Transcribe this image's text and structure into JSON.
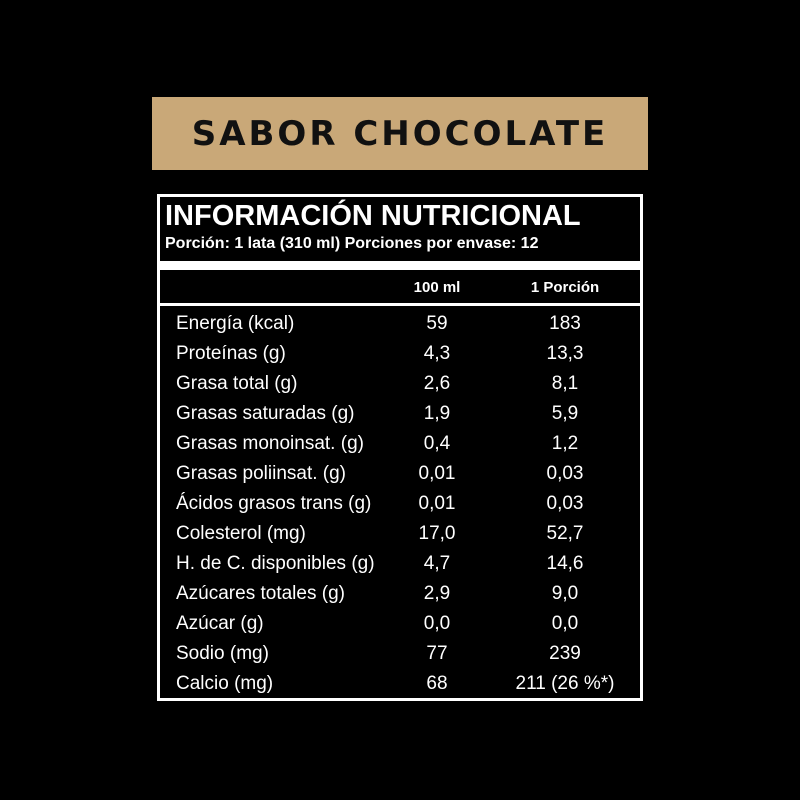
{
  "banner": {
    "title": "SABOR CHOCOLATE",
    "color": "#c9a878"
  },
  "panel": {
    "title": "INFORMACIÓN NUTRICIONAL",
    "serving": "Porción: 1 lata (310 ml)  Porciones por envase: 12",
    "columns": [
      "100 ml",
      "1 Porción"
    ],
    "rows": [
      {
        "label": "Energía (kcal)",
        "per100": "59",
        "portion": "183"
      },
      {
        "label": "Proteínas (g)",
        "per100": "4,3",
        "portion": "13,3"
      },
      {
        "label": "Grasa total (g)",
        "per100": "2,6",
        "portion": "8,1"
      },
      {
        "label": "Grasas saturadas (g)",
        "per100": "1,9",
        "portion": "5,9"
      },
      {
        "label": "Grasas monoinsat. (g)",
        "per100": "0,4",
        "portion": "1,2"
      },
      {
        "label": "Grasas poliinsat. (g)",
        "per100": "0,01",
        "portion": "0,03"
      },
      {
        "label": "Ácidos grasos trans (g)",
        "per100": "0,01",
        "portion": "0,03"
      },
      {
        "label": "Colesterol (mg)",
        "per100": "17,0",
        "portion": "52,7"
      },
      {
        "label": "H. de C. disponibles (g)",
        "per100": "4,7",
        "portion": "14,6"
      },
      {
        "label": "Azúcares totales (g)",
        "per100": "2,9",
        "portion": "9,0"
      },
      {
        "label": "Azúcar (g)",
        "per100": "0,0",
        "portion": "0,0"
      },
      {
        "label": "Sodio (mg)",
        "per100": "77",
        "portion": "239"
      },
      {
        "label": "Calcio (mg)",
        "per100": "68",
        "portion": "211 (26 %*)"
      }
    ]
  }
}
